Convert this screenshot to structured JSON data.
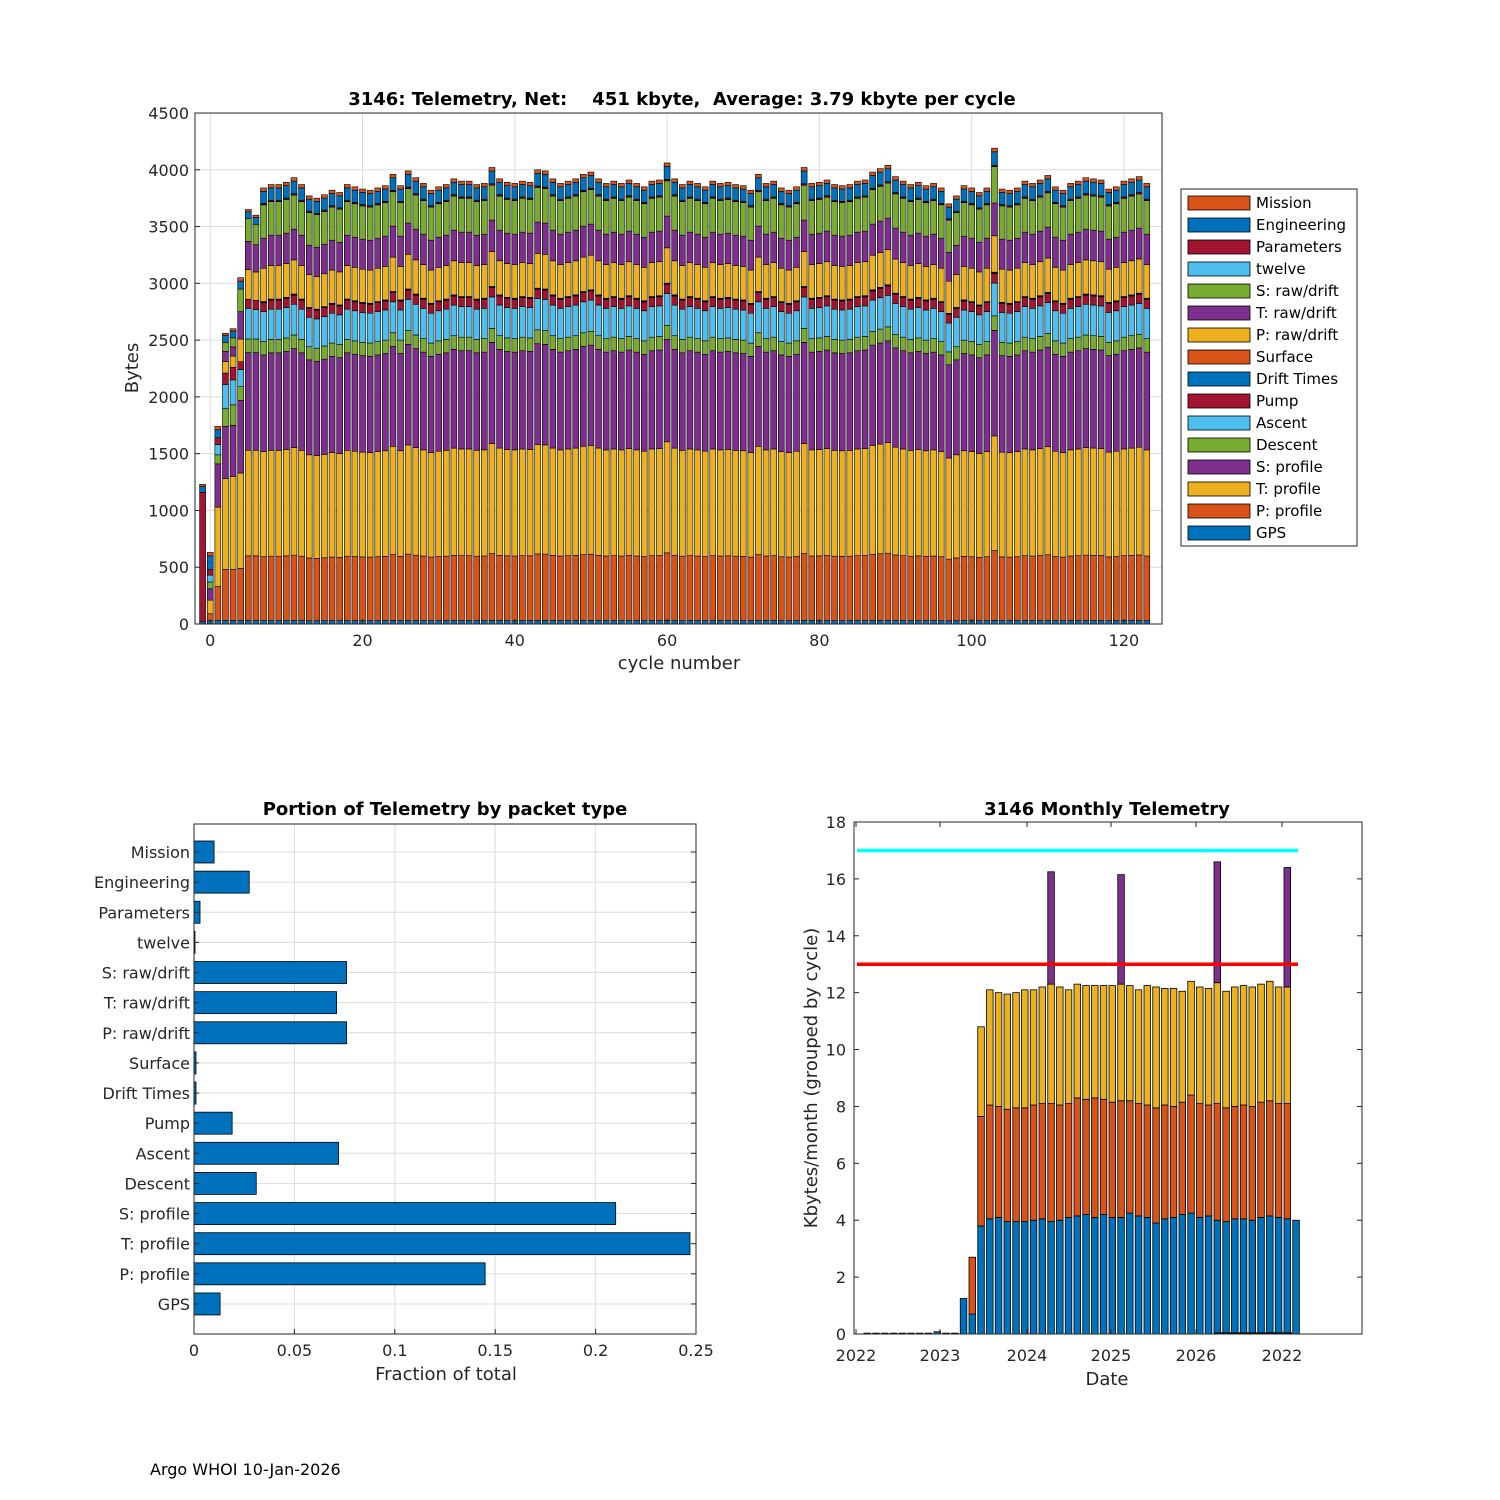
{
  "footer": "Argo WHOI 10-Jan-2026",
  "colors": {
    "blue": "#0072BD",
    "orange": "#D95319",
    "yellow": "#EDB120",
    "purple": "#7E2F8E",
    "green": "#77AC30",
    "cyan": "#4DBEEE",
    "red": "#A2142F",
    "cyan_line": "#00FFFF",
    "red_line": "#FF0000"
  },
  "chart_data": [
    {
      "id": "cycle",
      "type": "bar",
      "stacked": true,
      "title": "3146: Telemetry, Net:    451 kbyte,  Average: 3.79 kbyte per cycle",
      "xlabel": "cycle number",
      "ylabel": "Bytes",
      "xlim": [
        -2,
        125
      ],
      "ylim": [
        0,
        4500
      ],
      "xticks": [
        0,
        20,
        40,
        60,
        80,
        100,
        120
      ],
      "yticks": [
        0,
        500,
        1000,
        1500,
        2000,
        2500,
        3000,
        3500,
        4000,
        4500
      ],
      "grid": true,
      "legend_position": "outside-right",
      "legend": [
        "Mission",
        "Engineering",
        "Parameters",
        "twelve",
        "S: raw/drift",
        "T: raw/drift",
        "P: raw/drift",
        "Surface",
        "Drift Times",
        "Pump",
        "Ascent",
        "Descent",
        "S: profile",
        "T: profile",
        "P: profile",
        "GPS"
      ],
      "series_order_bottom_up": [
        "GPS",
        "P: profile",
        "T: profile",
        "S: profile",
        "Descent",
        "Ascent",
        "Pump",
        "Drift Times",
        "Surface",
        "P: raw/drift",
        "T: raw/drift",
        "S: raw/drift",
        "twelve",
        "Parameters",
        "Engineering",
        "Mission"
      ],
      "series_colors": {
        "GPS": "#0072BD",
        "P: profile": "#D95319",
        "T: profile": "#EDB120",
        "S: profile": "#7E2F8E",
        "Descent": "#77AC30",
        "Ascent": "#4DBEEE",
        "Pump": "#A2142F",
        "Drift Times": "#0072BD",
        "Surface": "#D95319",
        "P: raw/drift": "#EDB120",
        "T: raw/drift": "#7E2F8E",
        "S: raw/drift": "#77AC30",
        "twelve": "#4DBEEE",
        "Parameters": "#A2142F",
        "Engineering": "#0072BD",
        "Mission": "#D95319"
      },
      "early_cycles": [
        {
          "cycle": -1,
          "segments": {
            "GPS": 20,
            "Parameters": 1140,
            "Engineering": 50,
            "Mission": 20
          }
        },
        {
          "cycle": 0,
          "segments": {
            "GPS": 30,
            "P: profile": 60,
            "T: profile": 120,
            "S: profile": 100,
            "Descent": 60,
            "Ascent": 60,
            "Pump": 50,
            "Engineering": 120,
            "Mission": 30
          }
        },
        {
          "cycle": 1,
          "segments": {
            "GPS": 30,
            "P: profile": 300,
            "T: profile": 700,
            "S: profile": 380,
            "Descent": 80,
            "Ascent": 90,
            "Pump": 60,
            "Engineering": 70,
            "Mission": 30
          }
        },
        {
          "cycle": 2,
          "segments": {
            "GPS": 30,
            "P: profile": 450,
            "T: profile": 800,
            "S: profile": 460,
            "Descent": 160,
            "Ascent": 210,
            "Pump": 100,
            "P: raw/drift": 100,
            "T: raw/drift": 90,
            "S: raw/drift": 80,
            "Engineering": 60,
            "Mission": 20
          }
        },
        {
          "cycle": 3,
          "segments": {
            "GPS": 30,
            "P: profile": 450,
            "T: profile": 820,
            "S: profile": 450,
            "Descent": 180,
            "Ascent": 220,
            "Pump": 110,
            "P: raw/drift": 100,
            "T: raw/drift": 80,
            "S: raw/drift": 80,
            "Engineering": 60,
            "Mission": 20
          }
        },
        {
          "cycle": 4,
          "segments": {
            "GPS": 30,
            "P: profile": 460,
            "T: profile": 840,
            "S: profile": 640,
            "Descent": 120,
            "Ascent": 150,
            "Pump": 70,
            "P: raw/drift": 200,
            "T: raw/drift": 240,
            "S: raw/drift": 200,
            "Engineering": 70,
            "Mission": 30
          }
        },
        {
          "cycle": 5,
          "segments": {
            "GPS": 30,
            "P: profile": 570,
            "T: profile": 930,
            "S: profile": 860,
            "Descent": 120,
            "Ascent": 270,
            "Pump": 80,
            "P: raw/drift": 260,
            "T: raw/drift": 250,
            "S: raw/drift": 200,
            "Engineering": 60,
            "Mission": 20
          }
        },
        {
          "cycle": 6,
          "segments": {
            "GPS": 30,
            "P: profile": 570,
            "T: profile": 930,
            "S: profile": 860,
            "Descent": 120,
            "Ascent": 260,
            "Pump": 80,
            "P: raw/drift": 250,
            "T: raw/drift": 240,
            "S: raw/drift": 180,
            "Engineering": 60,
            "Mission": 20
          }
        }
      ],
      "typical_composition": {
        "GPS": 30,
        "P: profile": 575,
        "T: profile": 945,
        "S: profile": 870,
        "Descent": 120,
        "Ascent": 270,
        "Pump": 80,
        "Drift Times": 5,
        "Surface": 5,
        "P: raw/drift": 300,
        "T: raw/drift": 270,
        "S: raw/drift": 300,
        "twelve": 2,
        "Parameters": 10,
        "Engineering": 110,
        "Mission": 30
      },
      "total_cycles_shown": [
        7,
        117
      ],
      "totals_cycles_7_to_117": [
        3840,
        3870,
        3870,
        3890,
        3930,
        3870,
        3770,
        3750,
        3780,
        3820,
        3800,
        3870,
        3850,
        3830,
        3820,
        3840,
        3860,
        3960,
        3860,
        3990,
        3930,
        3880,
        3820,
        3850,
        3870,
        3920,
        3900,
        3900,
        3870,
        3880,
        4020,
        3920,
        3890,
        3880,
        3900,
        3890,
        4000,
        3990,
        3920,
        3880,
        3900,
        3920,
        3960,
        3980,
        3920,
        3880,
        3900,
        3880,
        3910,
        3880,
        3850,
        3900,
        3910,
        4060,
        3920,
        3870,
        3900,
        3880,
        3850,
        3900,
        3880,
        3890,
        3870,
        3860,
        3820,
        3960,
        3880,
        3900,
        3840,
        3820,
        3850,
        4020,
        3880,
        3890,
        3910,
        3870,
        3860,
        3870,
        3900,
        3910,
        3980,
        4010,
        4040,
        3940,
        3900,
        3870,
        3890,
        3860,
        3880,
        3840,
        3700,
        3770,
        3860,
        3840,
        3800,
        3840,
        4190,
        3830,
        3820,
        3840,
        3900,
        3880,
        3910,
        3950,
        3850,
        3820,
        3880,
        3900,
        3930,
        3920,
        3910,
        3830,
        3850,
        3900,
        3920,
        3940,
        3880
      ]
    },
    {
      "id": "portion",
      "type": "bar",
      "orientation": "horizontal",
      "title": "Portion of Telemetry by packet type",
      "xlabel": "Fraction of total",
      "xlim": [
        0,
        0.25
      ],
      "xticks": [
        "0",
        "0.05",
        "0.1",
        "0.15",
        "0.2",
        "0.25"
      ],
      "grid": true,
      "categories": [
        "Mission",
        "Engineering",
        "Parameters",
        "twelve",
        "S: raw/drift",
        "T: raw/drift",
        "P: raw/drift",
        "Surface",
        "Drift Times",
        "Pump",
        "Ascent",
        "Descent",
        "S: profile",
        "T: profile",
        "P: profile",
        "GPS"
      ],
      "values": [
        0.01,
        0.0275,
        0.003,
        0.0005,
        0.076,
        0.071,
        0.076,
        0.001,
        0.001,
        0.019,
        0.072,
        0.031,
        0.21,
        0.247,
        0.145,
        0.013
      ]
    },
    {
      "id": "monthly",
      "type": "bar",
      "stacked": true,
      "title": "3146 Monthly Telemetry",
      "xlabel": "Date",
      "ylabel": "Kbytes/month (grouped by cycle)",
      "ylim": [
        0,
        18
      ],
      "yticks": [
        0,
        2,
        4,
        6,
        8,
        10,
        12,
        14,
        16,
        18
      ],
      "xticks": [
        "2022",
        "2023",
        "2024",
        "2025",
        "2026",
        "2022"
      ],
      "grid": false,
      "reference_lines": [
        {
          "value": 17,
          "color": "cyan"
        },
        {
          "value": 13,
          "color": "red"
        }
      ],
      "months": [
        "2022-01",
        "2022-02",
        "2022-03",
        "2022-04",
        "2022-05",
        "2022-06",
        "2022-07",
        "2022-08",
        "2022-09",
        "2022-10",
        "2022-11",
        "2022-12",
        "2023-01",
        "2023-02",
        "2023-03",
        "2023-04",
        "2023-05",
        "2023-06",
        "2023-07",
        "2023-08",
        "2023-09",
        "2023-10",
        "2023-11",
        "2023-12",
        "2024-01",
        "2024-02",
        "2024-03",
        "2024-04",
        "2024-05",
        "2024-06",
        "2024-07",
        "2024-08",
        "2024-09",
        "2024-10",
        "2024-11",
        "2024-12",
        "2025-01",
        "2025-02",
        "2025-03",
        "2025-04",
        "2025-05",
        "2025-06",
        "2025-07",
        "2025-08",
        "2025-09",
        "2025-10",
        "2025-11",
        "2025-12",
        "2026-01",
        "2026-02",
        "2026-03"
      ],
      "series": [
        {
          "name": "blue",
          "values": [
            0.03,
            0.03,
            0.03,
            0.03,
            0.03,
            0.03,
            0.03,
            0.03,
            0.08,
            0.03,
            0.03,
            1.25,
            0.7,
            3.8,
            4.05,
            4.1,
            3.95,
            3.95,
            3.95,
            4.0,
            4.05,
            3.95,
            4.0,
            4.1,
            4.15,
            4.2,
            4.1,
            4.2,
            4.1,
            4.1,
            4.25,
            4.15,
            4.1,
            3.9,
            4.05,
            4.1,
            4.2,
            4.25,
            4.1,
            4.15,
            4.0,
            3.95,
            4.05,
            4.05,
            4.0,
            4.1,
            4.15,
            4.1,
            4.05,
            4.0,
            0.0
          ]
        },
        {
          "name": "orange",
          "values": [
            0,
            0,
            0,
            0,
            0,
            0,
            0,
            0,
            0,
            0,
            0,
            0,
            2.0,
            3.85,
            4.0,
            3.9,
            3.95,
            4.0,
            4.0,
            4.05,
            4.05,
            4.15,
            4.05,
            4.0,
            4.15,
            4.05,
            4.2,
            4.05,
            4.05,
            4.1,
            3.95,
            3.95,
            3.95,
            4.05,
            4.0,
            3.9,
            3.95,
            4.15,
            4.0,
            3.9,
            4.1,
            4.0,
            3.95,
            4.0,
            4.0,
            4.05,
            4.05,
            4.0,
            4.05,
            0,
            0
          ]
        },
        {
          "name": "yellow",
          "values": [
            0,
            0,
            0,
            0,
            0,
            0,
            0,
            0,
            0,
            0,
            0,
            0,
            0,
            3.15,
            4.05,
            4.0,
            4.05,
            4.05,
            4.15,
            4.05,
            4.1,
            4.2,
            4.15,
            4.0,
            4.0,
            4.0,
            3.95,
            4.0,
            4.1,
            4.1,
            4.05,
            4.0,
            4.2,
            4.25,
            4.1,
            4.15,
            3.9,
            4.0,
            4.1,
            4.1,
            4.25,
            4.1,
            4.2,
            4.2,
            4.2,
            4.15,
            4.2,
            4.1,
            4.1,
            0,
            0
          ]
        },
        {
          "name": "purple",
          "values": [
            0,
            0,
            0,
            0,
            0,
            0,
            0,
            0,
            0,
            0,
            0,
            0,
            0,
            0,
            0,
            0,
            0,
            0,
            0,
            0,
            0,
            3.95,
            0,
            0,
            0,
            0,
            0,
            0,
            0,
            3.85,
            0,
            0,
            0,
            0,
            0,
            0,
            0,
            0,
            0,
            0,
            4.25,
            0,
            0,
            0,
            0,
            0,
            0,
            0,
            4.2,
            0,
            0
          ]
        }
      ]
    }
  ]
}
